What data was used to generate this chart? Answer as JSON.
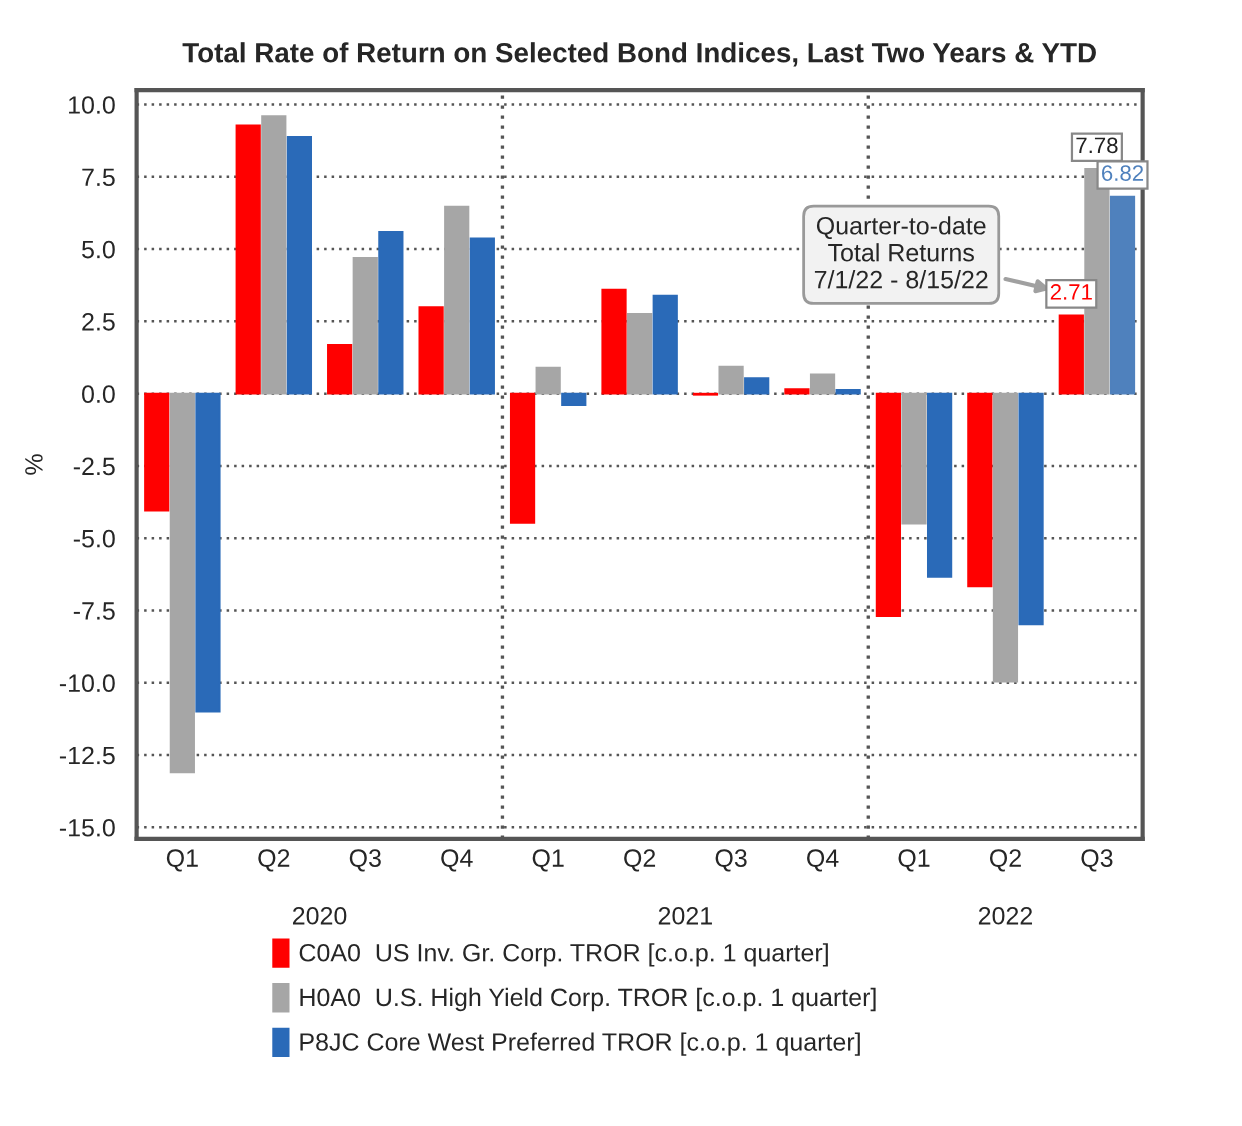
{
  "chart_data": {
    "type": "bar",
    "title": "Total Rate of Return on Selected Bond Indices, Last Two Years & YTD",
    "ylabel": "%",
    "categories": [
      "Q1",
      "Q2",
      "Q3",
      "Q4",
      "Q1",
      "Q2",
      "Q3",
      "Q4",
      "Q1",
      "Q2",
      "Q3"
    ],
    "series": [
      {
        "name": "C0A0  US Inv. Gr. Corp. TROR [c.o.p. 1 quarter]",
        "color": "#ff0000",
        "values": [
          -4.05,
          9.28,
          1.69,
          2.99,
          -4.47,
          3.6,
          -0.04,
          0.16,
          -7.7,
          -6.67,
          2.71
        ],
        "value_labels": [
          null,
          null,
          null,
          null,
          null,
          null,
          null,
          null,
          null,
          null,
          "2.71"
        ]
      },
      {
        "name": "H0A0  U.S. High Yield Corp. TROR [c.o.p. 1 quarter]",
        "color": "#a6a6a6",
        "values": [
          -13.1,
          9.6,
          4.7,
          6.47,
          0.9,
          2.76,
          0.94,
          0.67,
          -4.5,
          -9.96,
          7.78
        ],
        "value_labels": [
          null,
          null,
          null,
          null,
          null,
          null,
          null,
          null,
          null,
          null,
          "7.78"
        ]
      },
      {
        "name": "P8JC Core West Preferred TROR [c.o.p. 1 quarter]",
        "color": "#2a6ab8",
        "colors": [
          "#2a6ab8",
          "#2a6ab8",
          "#2a6ab8",
          "#2a6ab8",
          "#2a6ab8",
          "#2a6ab8",
          "#2a6ab8",
          "#2a6ab8",
          "#2a6ab8",
          "#2a6ab8",
          "#4f81bd"
        ],
        "values": [
          -11.0,
          8.88,
          5.6,
          5.37,
          -0.4,
          3.39,
          0.54,
          0.13,
          -6.34,
          -7.98,
          6.82
        ],
        "value_labels": [
          null,
          null,
          null,
          null,
          null,
          null,
          null,
          null,
          null,
          null,
          "6.82"
        ]
      }
    ],
    "ylim": [
      -15.4,
      10.5
    ],
    "yticks": [
      {
        "value": -15,
        "label": "-15.0"
      },
      {
        "value": -12.5,
        "label": "-12.5"
      },
      {
        "value": -10,
        "label": "-10.0"
      },
      {
        "value": -7.5,
        "label": "-7.5"
      },
      {
        "value": -5,
        "label": "-5.0"
      },
      {
        "value": -2.5,
        "label": "-2.5"
      },
      {
        "value": 0,
        "label": "0.0"
      },
      {
        "value": 2.5,
        "label": "2.5"
      },
      {
        "value": 5,
        "label": "5.0"
      },
      {
        "value": 7.5,
        "label": "7.5"
      },
      {
        "value": 10,
        "label": "10.0"
      }
    ],
    "grid": "y",
    "legend": "bottom",
    "annotations": [
      "Quarter-to-date\nTotal Returns\n7/1/22 - 8/15/22",
      "2020",
      "2021",
      "2022"
    ]
  }
}
